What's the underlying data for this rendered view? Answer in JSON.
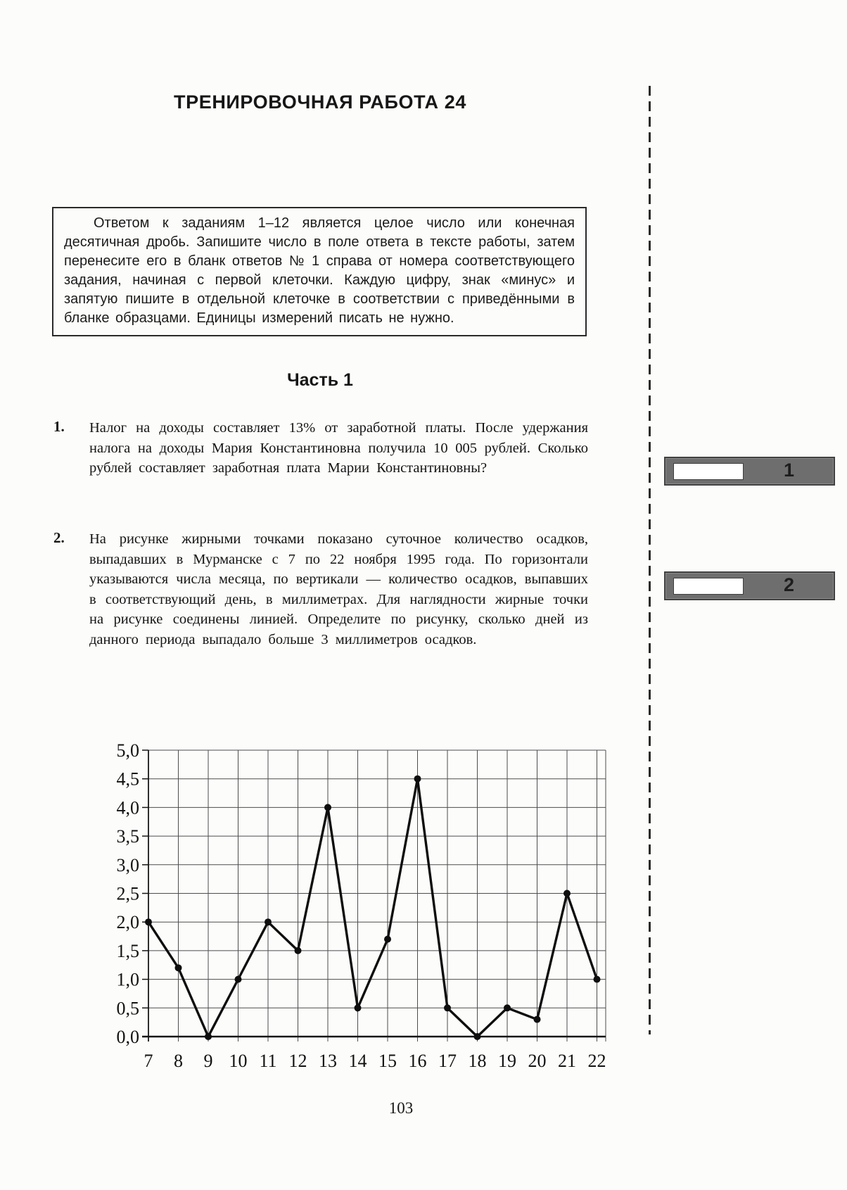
{
  "page": {
    "title": "ТРЕНИРОВОЧНАЯ РАБОТА 24",
    "part_heading": "Часть 1",
    "page_number": "103"
  },
  "instruction_box": {
    "text": "Ответом к заданиям 1–12 является целое число или конечная десятичная дробь. Запишите число в поле ответа в тексте работы, затем перенесите его в бланк ответов № 1 справа от номера соответствующего задания, начиная с первой клеточки. Каждую цифру, знак «минус» и запятую пишите в отдельной клеточке в соответствии с приведёнными в бланке образцами. Единицы измерений писать не нужно."
  },
  "problems": [
    {
      "number": "1.",
      "text": "Налог на доходы составляет 13% от заработной платы. После удержания налога на доходы Мария Константиновна получила 10 005 рублей. Сколько рублей составляет заработная плата Марии Константиновны?",
      "answer_slot_label": "1"
    },
    {
      "number": "2.",
      "text": "На рисунке жирными точками показано суточное количество осадков, выпадавших в Мурманске с 7 по 22 ноября 1995 года. По горизонтали указываются числа месяца, по вертикали — количество осадков, выпавших в соответствующий день, в миллиметрах. Для наглядности жирные точки на рисунке соединены линией. Определите по рисунку, сколько дней из данного периода выпадало больше 3 миллиметров осадков.",
      "answer_slot_label": "2"
    }
  ],
  "chart_data": {
    "type": "line",
    "x": [
      7,
      8,
      9,
      10,
      11,
      12,
      13,
      14,
      15,
      16,
      17,
      18,
      19,
      20,
      21,
      22
    ],
    "values": [
      2.0,
      1.2,
      0.0,
      1.0,
      2.0,
      1.5,
      4.0,
      0.5,
      1.7,
      4.5,
      0.5,
      0.0,
      0.5,
      0.3,
      2.5,
      1.0
    ],
    "x_tick_labels": [
      "7",
      "8",
      "9",
      "10",
      "11",
      "12",
      "13",
      "14",
      "15",
      "16",
      "17",
      "18",
      "19",
      "20",
      "21",
      "22"
    ],
    "y_tick_labels": [
      "0,0",
      "0,5",
      "1,0",
      "1,5",
      "2,0",
      "2,5",
      "3,0",
      "3,5",
      "4,0",
      "4,5",
      "5,0"
    ],
    "ylim": [
      0,
      5
    ],
    "y_step": 0.5,
    "grid": true,
    "legend": "none",
    "marker": "filled-circle",
    "title": "",
    "xlabel": "",
    "ylabel": ""
  },
  "colors": {
    "data_line": "#0e0e0e",
    "grid_line": "#4d4d4d",
    "axis_line": "#161616",
    "answer_slot_fill": "#6e6e6e",
    "answer_slot_border": "#414141",
    "answer_field_fill": "#ffffff",
    "separator": "#2b2b2b",
    "paper": "#fcfcfa"
  }
}
